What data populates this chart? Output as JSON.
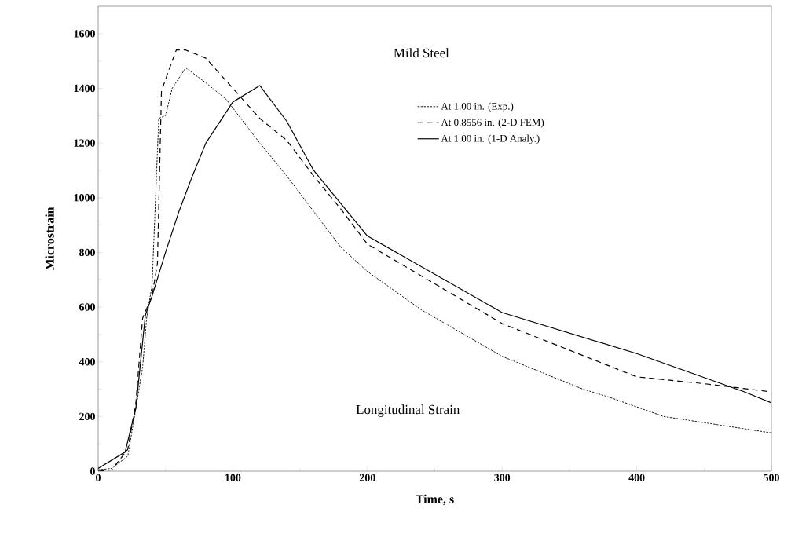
{
  "chart_data": {
    "type": "line",
    "title": "Mild Steel",
    "xlabel": "Time, s",
    "ylabel": "Microstrain",
    "annotations": [
      "Longitudinal Strain"
    ],
    "xlim": [
      0,
      500
    ],
    "ylim": [
      0,
      1700
    ],
    "xticks": [
      0,
      100,
      200,
      300,
      400,
      500
    ],
    "yticks": [
      0,
      200,
      400,
      600,
      800,
      1000,
      1200,
      1400,
      1600
    ],
    "grid": false,
    "legend": "top right",
    "marker": "none",
    "series": [
      {
        "name": "At 1.00 in.      (Exp.)",
        "color": "#000000",
        "line_style": "dotted",
        "x": [
          0,
          10,
          22,
          28,
          33,
          36,
          40,
          45,
          50,
          55,
          65,
          80,
          95,
          120,
          140,
          180,
          200,
          240,
          300,
          360,
          380,
          420,
          460,
          500
        ],
        "values": [
          5,
          10,
          55,
          230,
          380,
          560,
          680,
          1290,
          1300,
          1400,
          1475,
          1420,
          1360,
          1200,
          1080,
          820,
          730,
          590,
          420,
          300,
          270,
          200,
          170,
          140
        ]
      },
      {
        "name": "At 0.8556 in.   (2-D FEM)",
        "color": "#000000",
        "line_style": "dashed",
        "x": [
          0,
          10,
          22,
          28,
          33,
          40,
          44,
          47,
          52,
          58,
          65,
          80,
          100,
          120,
          140,
          160,
          180,
          200,
          300,
          400,
          450,
          500
        ],
        "values": [
          0,
          5,
          80,
          250,
          560,
          640,
          760,
          1390,
          1460,
          1540,
          1540,
          1510,
          1400,
          1290,
          1210,
          1080,
          960,
          830,
          540,
          345,
          320,
          290
        ]
      },
      {
        "name": "At 1.00 in.      (1-D Analy.)",
        "color": "#000000",
        "line_style": "solid",
        "x": [
          0,
          20,
          28,
          35,
          40,
          50,
          60,
          70,
          80,
          100,
          120,
          140,
          160,
          200,
          300,
          400,
          480,
          500
        ],
        "values": [
          10,
          70,
          230,
          570,
          640,
          800,
          950,
          1080,
          1200,
          1350,
          1410,
          1280,
          1100,
          860,
          580,
          430,
          290,
          250
        ]
      }
    ]
  }
}
